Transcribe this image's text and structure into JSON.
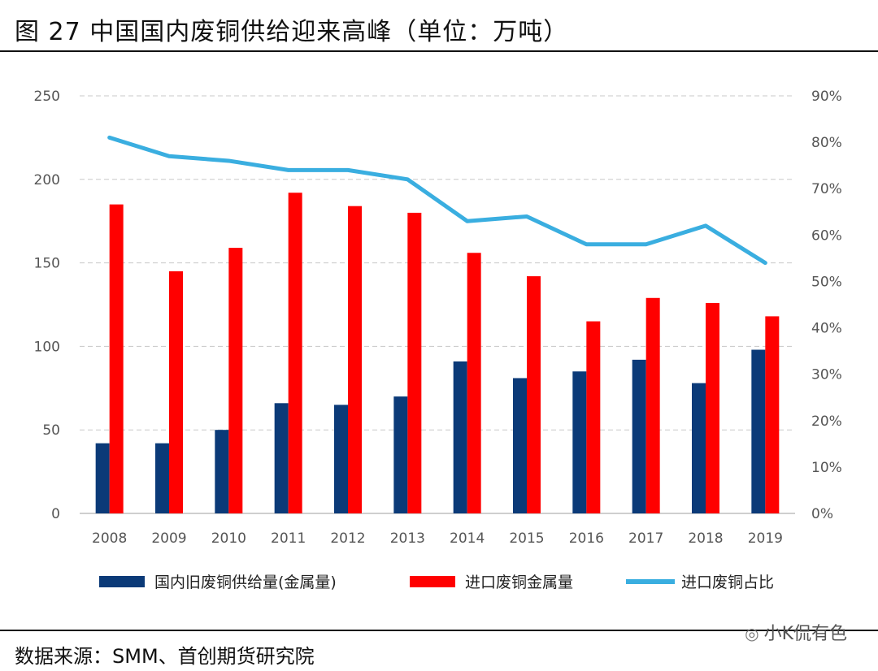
{
  "header": {
    "title": "图 27 中国国内废铜供给迎来高峰（单位：万吨）"
  },
  "footer": {
    "source": "数据来源：SMM、首创期货研究院",
    "watermark": "小K侃有色",
    "watermark_icon": "wechat-icon"
  },
  "colors": {
    "domestic": "#0b3a78",
    "imported": "#ff0000",
    "ratio": "#3aaee0",
    "grid": "#c8c8c8"
  },
  "chart_data": {
    "type": "bar",
    "categories": [
      "2008",
      "2009",
      "2010",
      "2011",
      "2012",
      "2013",
      "2014",
      "2015",
      "2016",
      "2017",
      "2018",
      "2019"
    ],
    "series": [
      {
        "name": "国内旧废铜供给量(金属量)",
        "type": "bar",
        "axis": "left",
        "values": [
          42,
          42,
          50,
          66,
          65,
          70,
          91,
          81,
          85,
          92,
          78,
          98
        ]
      },
      {
        "name": "进口废铜金属量",
        "type": "bar",
        "axis": "left",
        "values": [
          185,
          145,
          159,
          192,
          184,
          180,
          156,
          142,
          115,
          129,
          126,
          118
        ]
      },
      {
        "name": "进口废铜占比",
        "type": "line",
        "axis": "right",
        "values": [
          0.81,
          0.77,
          0.76,
          0.74,
          0.74,
          0.72,
          0.63,
          0.64,
          0.58,
          0.58,
          0.62,
          0.54
        ]
      }
    ],
    "ylim": [
      0,
      250
    ],
    "yticks": [
      "0",
      "50",
      "100",
      "150",
      "200",
      "250"
    ],
    "y2lim": [
      0,
      0.9
    ],
    "y2ticks": [
      "0%",
      "10%",
      "20%",
      "30%",
      "40%",
      "50%",
      "60%",
      "70%",
      "80%",
      "90%"
    ],
    "grid": true,
    "legend_position": "bottom"
  }
}
